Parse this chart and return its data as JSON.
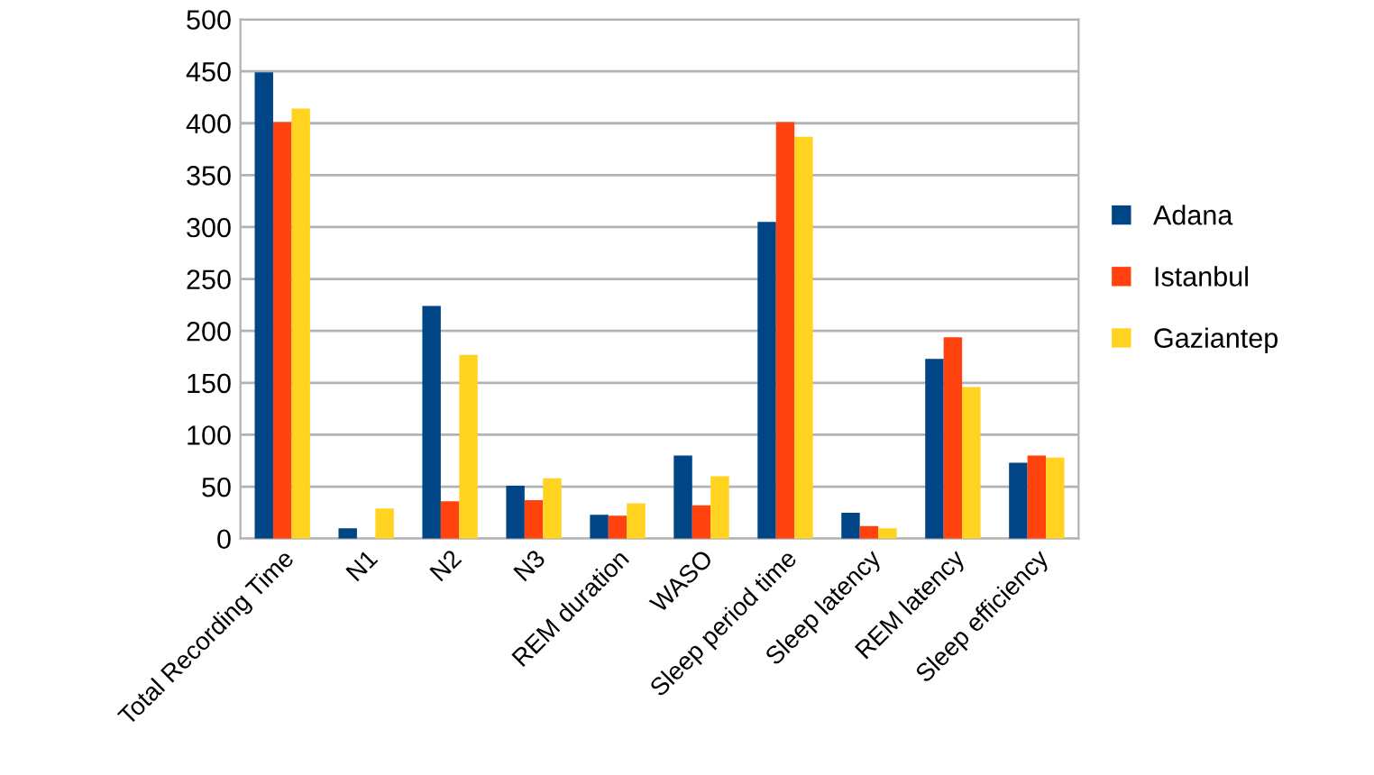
{
  "chart_data": {
    "type": "bar",
    "categories": [
      "Total Recording Time",
      "N1",
      "N2",
      "N3",
      "REM duration",
      "WASO",
      "Sleep period time",
      "Sleep latency",
      "REM latency",
      "Sleep efficiency"
    ],
    "series": [
      {
        "name": "Adana",
        "color": "#004586",
        "values": [
          449,
          10,
          224,
          51,
          23,
          80,
          305,
          25,
          173,
          73
        ]
      },
      {
        "name": "Istanbul",
        "color": "#ff420e",
        "values": [
          401,
          null,
          36,
          37,
          22,
          32,
          401,
          12,
          194,
          80
        ]
      },
      {
        "name": "Gaziantep",
        "color": "#ffd320",
        "values": [
          414,
          29,
          177,
          58,
          34,
          60,
          387,
          10,
          146,
          78
        ]
      }
    ],
    "ylim": [
      0,
      500
    ],
    "yticks": [
      0,
      50,
      100,
      150,
      200,
      250,
      300,
      350,
      400,
      450,
      500
    ],
    "grid": "y",
    "legend": "right"
  }
}
